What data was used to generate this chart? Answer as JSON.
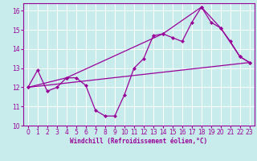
{
  "background_color": "#c8ecec",
  "grid_color": "#ffffff",
  "line_color": "#990099",
  "xlabel": "Windchill (Refroidissement éolien,°C)",
  "xlim": [
    -0.5,
    23.5
  ],
  "ylim": [
    10,
    16.4
  ],
  "yticks": [
    10,
    11,
    12,
    13,
    14,
    15,
    16
  ],
  "xticks": [
    0,
    1,
    2,
    3,
    4,
    5,
    6,
    7,
    8,
    9,
    10,
    11,
    12,
    13,
    14,
    15,
    16,
    17,
    18,
    19,
    20,
    21,
    22,
    23
  ],
  "line1_x": [
    0,
    1,
    2,
    3,
    4,
    5,
    6,
    7,
    8,
    9,
    10,
    11,
    12,
    13,
    14,
    15,
    16,
    17,
    18,
    19,
    20,
    21,
    22,
    23
  ],
  "line1_y": [
    12.0,
    12.9,
    11.8,
    12.0,
    12.5,
    12.5,
    12.1,
    10.8,
    10.5,
    10.5,
    11.6,
    13.0,
    13.5,
    14.7,
    14.8,
    14.6,
    14.4,
    15.4,
    16.2,
    15.4,
    15.1,
    14.4,
    13.6,
    13.3
  ],
  "line2_x": [
    0,
    23
  ],
  "line2_y": [
    12.0,
    13.3
  ],
  "line3_x": [
    0,
    4,
    14,
    18,
    20,
    22,
    23
  ],
  "line3_y": [
    12.0,
    12.5,
    14.8,
    16.2,
    15.1,
    13.6,
    13.3
  ]
}
